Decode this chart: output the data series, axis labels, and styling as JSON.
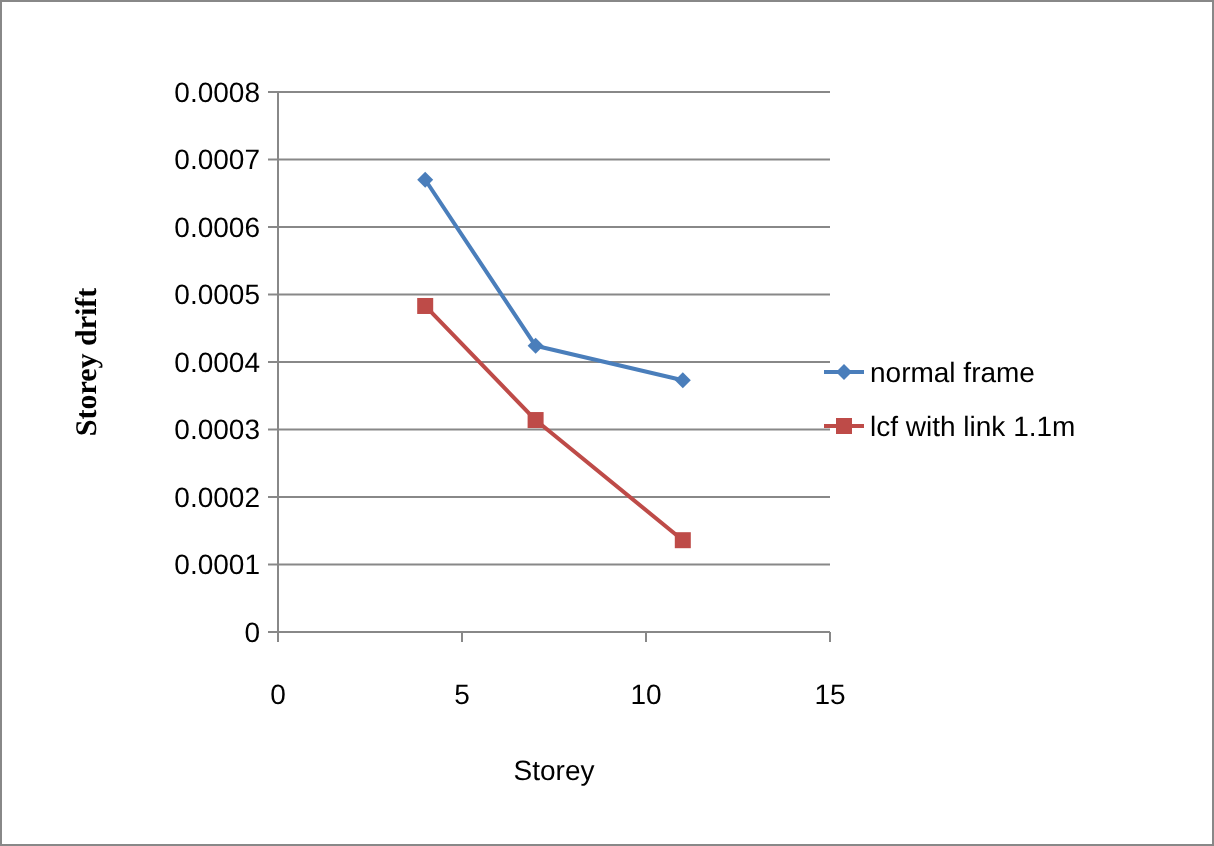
{
  "chart_data": {
    "type": "line",
    "xlabel": "Storey",
    "ylabel": "Storey drift",
    "xlim": [
      0,
      15
    ],
    "xticks": [
      0,
      5,
      10,
      15
    ],
    "ylim": [
      0,
      0.0008
    ],
    "yticks": [
      0,
      0.0001,
      0.0002,
      0.0003,
      0.0004,
      0.0005,
      0.0006,
      0.0007,
      0.0008
    ],
    "grid": "y",
    "legend": "right",
    "line_style": "solid",
    "series": [
      {
        "name": "normal frame",
        "color": "#4a7ebb",
        "marker": "diamond",
        "x": [
          4,
          7,
          11
        ],
        "values": [
          0.00067,
          0.000424,
          0.000373
        ]
      },
      {
        "name": "lcf  with link  1.1m",
        "color": "#be4b48",
        "marker": "square",
        "x": [
          4,
          7,
          11
        ],
        "values": [
          0.000483,
          0.000314,
          0.000136
        ]
      }
    ]
  }
}
